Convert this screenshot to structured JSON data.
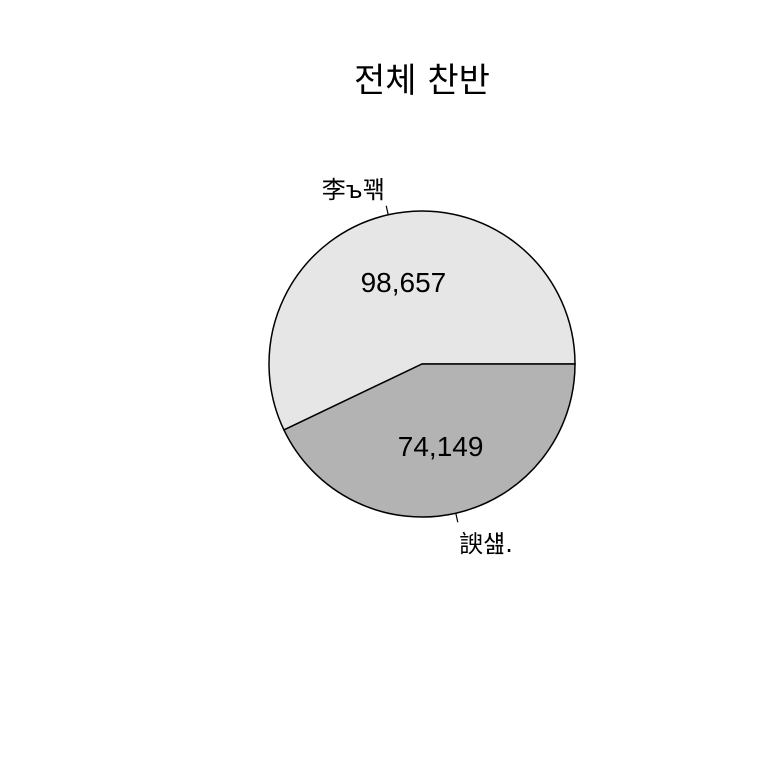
{
  "chart_data": {
    "type": "pie",
    "title": "전체 찬반",
    "slices": [
      {
        "label": "李ъ꽦",
        "value": 98657,
        "value_label": "98,657",
        "color": "#e6e6e6"
      },
      {
        "label": "諛섎.",
        "value": 74149,
        "value_label": "74,149",
        "color": "#b3b3b3"
      }
    ],
    "start": "3 o'clock",
    "direction": "counterclockwise"
  }
}
